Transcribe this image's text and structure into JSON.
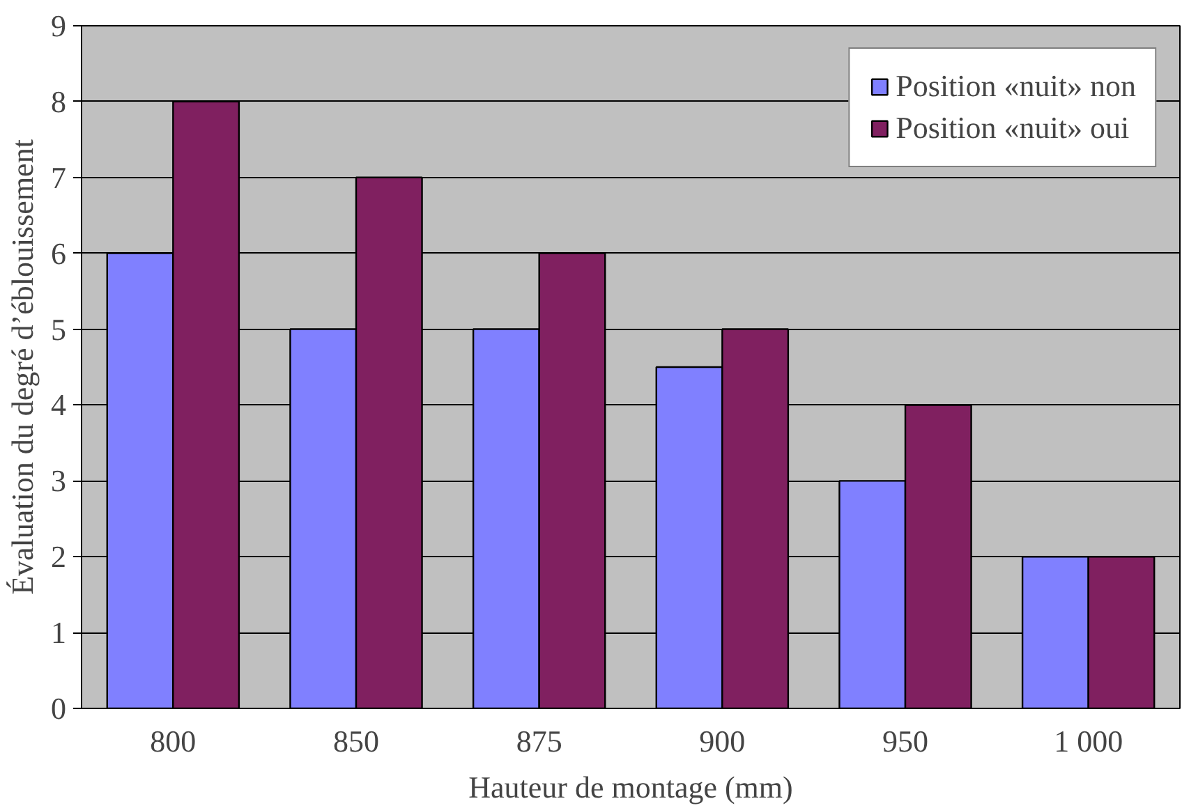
{
  "chart_data": {
    "type": "bar",
    "xlabel": "Hauteur de montage (mm)",
    "ylabel": "Évaluation du degré d’éblouissement",
    "categories": [
      "800",
      "850",
      "875",
      "900",
      "950",
      "1 000"
    ],
    "series": [
      {
        "name": "Position «nuit» non",
        "color": "#8080ff",
        "values": [
          6,
          5,
          5,
          4.5,
          3,
          2
        ]
      },
      {
        "name": "Position «nuit» oui",
        "color": "#802060",
        "values": [
          8,
          7,
          6,
          5,
          4,
          2
        ]
      }
    ],
    "ylim": [
      0,
      9
    ],
    "yticks": [
      0,
      1,
      2,
      3,
      4,
      5,
      6,
      7,
      8,
      9
    ],
    "grid": "y",
    "legend": "top right"
  }
}
